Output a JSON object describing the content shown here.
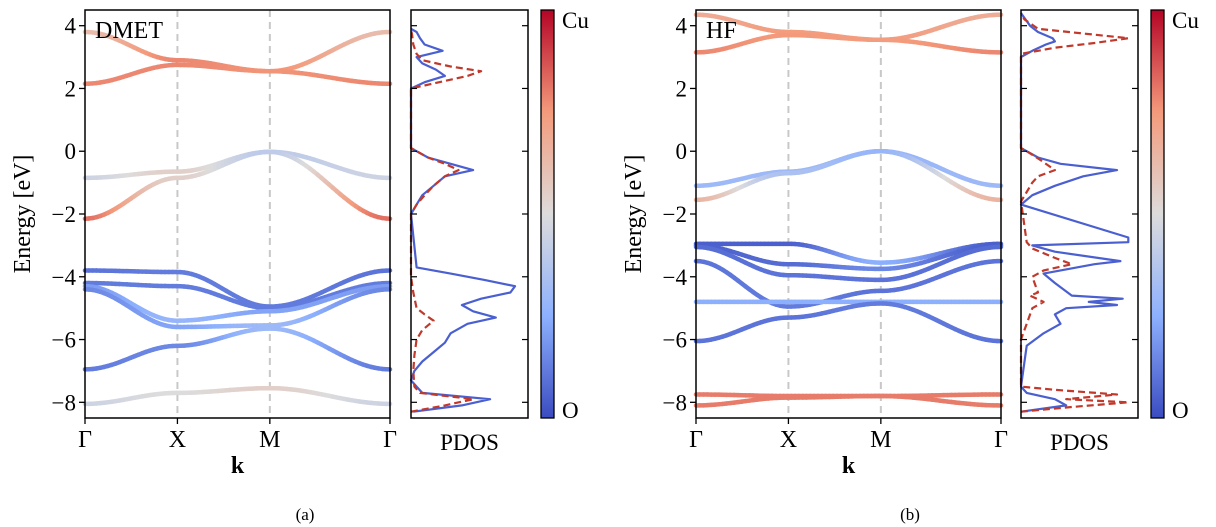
{
  "figure": {
    "panel_labels": [
      "(a)",
      "(b)"
    ]
  },
  "chart_data": [
    {
      "type": "line",
      "panel": "(a)",
      "annotation": "DMET",
      "xlabel": "k",
      "ylabel": "Energy [eV]",
      "ylim": [
        -8.5,
        4.5
      ],
      "yticks": [
        4,
        2,
        0,
        -2,
        -4,
        -6,
        -8
      ],
      "ytick_labels": [
        "4",
        "2",
        "0",
        "−2",
        "−4",
        "−6",
        "−8"
      ],
      "kpoint_labels": [
        "Γ",
        "X",
        "M",
        "Γ"
      ],
      "kpoint_positions": [
        0,
        1,
        2,
        3.3
      ],
      "grid": "dashed vertical lines at X and M",
      "color_by": "Cu / O weight (colorbar)",
      "bands": [
        {
          "x": [
            0,
            1,
            2,
            3.3
          ],
          "y": [
            3.8,
            2.9,
            2.55,
            3.8
          ],
          "cu": [
            0.62,
            0.78,
            0.76,
            0.62
          ]
        },
        {
          "x": [
            0,
            1,
            2,
            3.3
          ],
          "y": [
            2.15,
            2.75,
            2.55,
            2.15
          ],
          "cu": [
            0.78,
            0.78,
            0.76,
            0.78
          ]
        },
        {
          "x": [
            0,
            1,
            2,
            3.3
          ],
          "y": [
            -0.85,
            -0.65,
            -0.02,
            -0.85
          ],
          "cu": [
            0.45,
            0.55,
            0.4,
            0.45
          ]
        },
        {
          "x": [
            0,
            1,
            2,
            3.3
          ],
          "y": [
            -2.15,
            -0.85,
            -0.02,
            -2.15
          ],
          "cu": [
            0.82,
            0.55,
            0.4,
            0.82
          ]
        },
        {
          "x": [
            0,
            1,
            2,
            3.3
          ],
          "y": [
            -3.8,
            -3.85,
            -4.95,
            -3.8
          ],
          "cu": [
            0.1,
            0.12,
            0.12,
            0.1
          ]
        },
        {
          "x": [
            0,
            1,
            2,
            3.3
          ],
          "y": [
            -4.2,
            -4.3,
            -5.0,
            -4.2
          ],
          "cu": [
            0.12,
            0.12,
            0.12,
            0.12
          ]
        },
        {
          "x": [
            0,
            1,
            2,
            3.3
          ],
          "y": [
            -4.3,
            -5.4,
            -5.1,
            -4.3
          ],
          "cu": [
            0.2,
            0.28,
            0.22,
            0.2
          ]
        },
        {
          "x": [
            0,
            1,
            2,
            3.3
          ],
          "y": [
            -4.4,
            -5.6,
            -5.55,
            -4.4
          ],
          "cu": [
            0.15,
            0.22,
            0.3,
            0.15
          ]
        },
        {
          "x": [
            0,
            1,
            2,
            3.3
          ],
          "y": [
            -6.95,
            -6.2,
            -5.65,
            -6.95
          ],
          "cu": [
            0.12,
            0.15,
            0.3,
            0.12
          ]
        },
        {
          "x": [
            0,
            1,
            2,
            3.3
          ],
          "y": [
            -8.05,
            -7.7,
            -7.55,
            -8.05
          ],
          "cu": [
            0.45,
            0.5,
            0.55,
            0.45
          ]
        }
      ],
      "pdos": {
        "xlabel": "PDOS",
        "series": [
          {
            "name": "O",
            "style": "solid",
            "color": "#4a5fd0",
            "y": [
              -8.3,
              -8.1,
              -7.9,
              -7.7,
              -7.5,
              -7.3,
              -7.0,
              -6.7,
              -6.4,
              -6.1,
              -5.8,
              -5.5,
              -5.3,
              -5.1,
              -4.9,
              -4.7,
              -4.5,
              -4.3,
              -4.1,
              -3.9,
              -3.7,
              -2.0,
              -1.7,
              -1.4,
              -1.1,
              -0.8,
              -0.6,
              -0.4,
              -0.2,
              0.0,
              0.1,
              2.0,
              2.2,
              2.4,
              2.6,
              2.8,
              3.0,
              3.2,
              3.4,
              3.6,
              3.8,
              3.9
            ],
            "v": [
              0.02,
              0.45,
              0.7,
              0.1,
              0.05,
              0.0,
              0.03,
              0.1,
              0.2,
              0.3,
              0.35,
              0.5,
              0.75,
              0.55,
              0.45,
              0.62,
              0.88,
              0.92,
              0.65,
              0.35,
              0.05,
              0.0,
              0.05,
              0.1,
              0.2,
              0.3,
              0.55,
              0.35,
              0.15,
              0.05,
              0.0,
              0.0,
              0.12,
              0.3,
              0.22,
              0.1,
              0.05,
              0.28,
              0.12,
              0.08,
              0.05,
              0.0
            ]
          },
          {
            "name": "Cu",
            "style": "dashed",
            "color": "#c0392b",
            "y": [
              -8.3,
              -8.1,
              -7.9,
              -7.7,
              -7.5,
              -7.0,
              -6.5,
              -6.0,
              -5.7,
              -5.4,
              -5.2,
              -5.0,
              -4.5,
              -4.0,
              -3.7,
              -2.0,
              -1.7,
              -1.4,
              -1.1,
              -0.8,
              -0.6,
              -0.4,
              -0.2,
              0.0,
              0.1,
              2.0,
              2.2,
              2.4,
              2.55,
              2.7,
              2.9,
              3.1,
              3.4,
              3.7,
              3.9
            ],
            "v": [
              0.0,
              0.3,
              0.55,
              0.08,
              0.03,
              0.02,
              0.03,
              0.05,
              0.1,
              0.2,
              0.12,
              0.05,
              0.02,
              0.0,
              0.0,
              0.0,
              0.05,
              0.12,
              0.2,
              0.3,
              0.42,
              0.3,
              0.15,
              0.05,
              0.0,
              0.0,
              0.25,
              0.5,
              0.62,
              0.35,
              0.1,
              0.05,
              0.02,
              0.01,
              0.0
            ]
          }
        ]
      },
      "colorbar": {
        "top_label": "Cu",
        "bottom_label": "O"
      }
    },
    {
      "type": "line",
      "panel": "(b)",
      "annotation": "HF",
      "xlabel": "k",
      "ylabel": "Energy [eV]",
      "ylim": [
        -8.5,
        4.5
      ],
      "yticks": [
        4,
        2,
        0,
        -2,
        -4,
        -6,
        -8
      ],
      "ytick_labels": [
        "4",
        "2",
        "0",
        "−2",
        "−4",
        "−6",
        "−8"
      ],
      "kpoint_labels": [
        "Γ",
        "X",
        "M",
        "Γ"
      ],
      "kpoint_positions": [
        0,
        1,
        2,
        3.3
      ],
      "grid": "dashed vertical lines at X and M",
      "color_by": "Cu / O weight (colorbar)",
      "bands": [
        {
          "x": [
            0,
            1,
            2,
            3.3
          ],
          "y": [
            4.35,
            3.8,
            3.55,
            4.35
          ],
          "cu": [
            0.68,
            0.74,
            0.74,
            0.68
          ]
        },
        {
          "x": [
            0,
            1,
            2,
            3.3
          ],
          "y": [
            3.15,
            3.7,
            3.55,
            3.15
          ],
          "cu": [
            0.78,
            0.75,
            0.74,
            0.78
          ]
        },
        {
          "x": [
            0,
            1,
            2,
            3.3
          ],
          "y": [
            -1.1,
            -0.65,
            0.0,
            -1.1
          ],
          "cu": [
            0.3,
            0.3,
            0.28,
            0.3
          ]
        },
        {
          "x": [
            0,
            1,
            2,
            3.3
          ],
          "y": [
            -1.55,
            -0.7,
            0.0,
            -1.55
          ],
          "cu": [
            0.65,
            0.35,
            0.28,
            0.65
          ]
        },
        {
          "x": [
            0,
            1,
            2,
            3.3
          ],
          "y": [
            -2.95,
            -2.95,
            -3.55,
            -2.95
          ],
          "cu": [
            0.05,
            0.05,
            0.25,
            0.05
          ]
        },
        {
          "x": [
            0,
            1,
            2,
            3.3
          ],
          "y": [
            -3.0,
            -3.6,
            -3.75,
            -3.0
          ],
          "cu": [
            0.05,
            0.08,
            0.15,
            0.05
          ]
        },
        {
          "x": [
            0,
            1,
            2,
            3.3
          ],
          "y": [
            -3.05,
            -3.95,
            -4.1,
            -3.05
          ],
          "cu": [
            0.08,
            0.1,
            0.1,
            0.08
          ]
        },
        {
          "x": [
            0,
            1,
            2,
            3.3
          ],
          "y": [
            -3.5,
            -4.95,
            -4.45,
            -3.5
          ],
          "cu": [
            0.1,
            0.12,
            0.1,
            0.1
          ]
        },
        {
          "x": [
            0,
            1,
            2,
            3.3
          ],
          "y": [
            -4.8,
            -4.8,
            -4.8,
            -4.8
          ],
          "cu": [
            0.25,
            0.25,
            0.25,
            0.25
          ]
        },
        {
          "x": [
            0,
            1,
            2,
            3.3
          ],
          "y": [
            -6.05,
            -5.3,
            -4.85,
            -6.05
          ],
          "cu": [
            0.1,
            0.1,
            0.12,
            0.1
          ]
        },
        {
          "x": [
            0,
            1,
            2,
            3.3
          ],
          "y": [
            -7.75,
            -7.8,
            -7.8,
            -7.75
          ],
          "cu": [
            0.8,
            0.8,
            0.8,
            0.8
          ]
        },
        {
          "x": [
            0,
            1,
            2,
            3.3
          ],
          "y": [
            -8.1,
            -7.85,
            -7.8,
            -8.1
          ],
          "cu": [
            0.8,
            0.8,
            0.8,
            0.8
          ]
        }
      ],
      "pdos": {
        "xlabel": "PDOS",
        "series": [
          {
            "name": "O",
            "style": "solid",
            "color": "#4a5fd0",
            "y": [
              -8.3,
              -8.1,
              -7.9,
              -7.7,
              -7.5,
              -6.2,
              -5.8,
              -5.5,
              -5.2,
              -5.0,
              -4.9,
              -4.8,
              -4.7,
              -4.6,
              -4.2,
              -3.9,
              -3.6,
              -3.5,
              -3.2,
              -3.0,
              -2.9,
              -2.75,
              -1.7,
              -1.4,
              -1.1,
              -0.8,
              -0.6,
              -0.4,
              -0.2,
              0.0,
              0.1,
              3.0,
              3.2,
              3.4,
              3.5,
              3.6,
              3.8,
              4.0,
              4.2,
              4.4
            ],
            "v": [
              0.0,
              0.4,
              0.3,
              0.05,
              0.0,
              0.05,
              0.2,
              0.35,
              0.3,
              0.4,
              0.85,
              0.6,
              0.9,
              0.45,
              0.3,
              0.2,
              0.65,
              0.88,
              0.3,
              0.1,
              0.95,
              0.95,
              0.0,
              0.1,
              0.3,
              0.55,
              0.85,
              0.35,
              0.15,
              0.05,
              0.0,
              0.0,
              0.1,
              0.22,
              0.3,
              0.28,
              0.15,
              0.08,
              0.04,
              0.0
            ]
          },
          {
            "name": "Cu",
            "style": "dashed",
            "color": "#c0392b",
            "y": [
              -8.3,
              -8.15,
              -8.0,
              -7.9,
              -7.75,
              -7.6,
              -7.5,
              -6.0,
              -5.5,
              -5.0,
              -4.8,
              -4.6,
              -4.5,
              -4.0,
              -3.8,
              -3.6,
              -3.4,
              -3.1,
              -2.9,
              -1.6,
              -1.3,
              -1.0,
              -0.8,
              -0.6,
              -0.3,
              0.0,
              0.1,
              3.1,
              3.3,
              3.45,
              3.6,
              3.75,
              3.9,
              4.2,
              4.4
            ],
            "v": [
              0.0,
              0.45,
              0.95,
              0.4,
              0.85,
              0.3,
              0.0,
              0.0,
              0.05,
              0.1,
              0.2,
              0.08,
              0.15,
              0.1,
              0.2,
              0.45,
              0.3,
              0.1,
              0.05,
              0.0,
              0.05,
              0.1,
              0.15,
              0.3,
              0.18,
              0.05,
              0.0,
              0.0,
              0.3,
              0.65,
              0.95,
              0.55,
              0.15,
              0.03,
              0.0
            ]
          }
        ]
      },
      "colorbar": {
        "top_label": "Cu",
        "bottom_label": "O"
      }
    }
  ]
}
